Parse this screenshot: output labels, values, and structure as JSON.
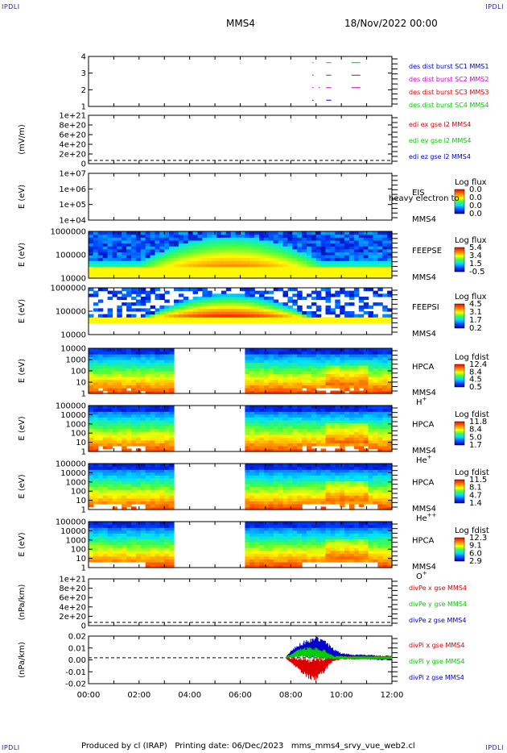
{
  "corner_label": "IPDLI",
  "header": {
    "mission": "MMS4",
    "datetime": "18/Nov/2022 00:00"
  },
  "footer": {
    "produced_by": "Produced by cl (IRAP)",
    "printing_date": "Printing date: 06/Dec/2023",
    "filename": "mms_mms4_srvy_vue_web2.cl"
  },
  "colors": {
    "red": "#dd0000",
    "green": "#00cc00",
    "blue": "#0000cc",
    "magenta": "#cc00cc",
    "fill_gap": "#ffffff"
  },
  "time_axis": {
    "range_hours": [
      0,
      12
    ],
    "tick_labels": [
      "00:00",
      "02:00",
      "04:00",
      "06:00",
      "08:00",
      "10:00",
      "12:00"
    ]
  },
  "chart_data": [
    {
      "type": "line",
      "panel": "burst",
      "ylabel": "",
      "yticks": [
        "4",
        "3",
        "2",
        "1"
      ],
      "ylim": [
        0.5,
        4.5
      ],
      "legend": [
        {
          "text": "des dist burst SC1 MMS1",
          "color": "#0000cc"
        },
        {
          "text": "des dist burst SC2 MMS2",
          "color": "#cc00cc"
        },
        {
          "text": "des dist burst SC3 MMS3",
          "color": "#dd0000"
        },
        {
          "text": "des dist burst SC4 MMS4",
          "color": "#00cc00"
        }
      ],
      "series": [
        {
          "name": "SC1",
          "level": 1,
          "x_hours": [
            [
              8.85,
              8.9
            ],
            [
              9.4,
              9.6
            ]
          ]
        },
        {
          "name": "SC2",
          "level": 2,
          "x_hours": [
            [
              8.85,
              8.9
            ],
            [
              9.1,
              9.15
            ],
            [
              9.4,
              9.6
            ],
            [
              10.4,
              10.75
            ]
          ]
        },
        {
          "name": "SC3",
          "level": 3,
          "x_hours": [
            [
              8.85,
              8.9
            ],
            [
              9.4,
              9.6
            ],
            [
              10.4,
              10.75
            ]
          ]
        },
        {
          "name": "SC4",
          "level": 4,
          "x_hours": [
            [
              8.85,
              8.9
            ],
            [
              9.4,
              9.6
            ],
            [
              10.4,
              10.75
            ]
          ]
        }
      ]
    },
    {
      "type": "line",
      "panel": "edi",
      "ylabel": "(mV/m)",
      "yticks": [
        "1e+21",
        "8e+20",
        "6e+20",
        "4e+20",
        "2e+20",
        "0"
      ],
      "ylim": [
        0,
        1e+21
      ],
      "legend": [
        {
          "text": "edi ex gse l2 MMS4",
          "color": "#dd0000"
        },
        {
          "text": "edi ey gse l2 MMS4",
          "color": "#00cc00"
        },
        {
          "text": "edi ez gse l2 MMS4",
          "color": "#0000cc"
        }
      ]
    },
    {
      "type": "heatmap",
      "panel": "eis",
      "ylabel": "E (eV)",
      "yticks": [
        "1e+07",
        "1e+06",
        "1e+05",
        "1e+04"
      ],
      "side_labels": [
        "EIS",
        "MMS4"
      ],
      "overlay_text": "heavy electron to",
      "colorbar": {
        "title": "Log flux",
        "ticks": [
          "0.0",
          "0.0",
          "0.0",
          "0.0"
        ]
      }
    },
    {
      "type": "heatmap",
      "panel": "feeps_e",
      "ylabel": "E (eV)",
      "yticks": [
        "1000000",
        "100000",
        "10000"
      ],
      "side_labels": [
        "FEEPSE",
        "MMS4"
      ],
      "colorbar": {
        "title": "Log flux",
        "ticks": [
          "5.4",
          "3.4",
          "1.5",
          "-0.5"
        ]
      }
    },
    {
      "type": "heatmap",
      "panel": "feeps_i",
      "ylabel": "E (eV)",
      "yticks": [
        "1000000",
        "100000",
        "10000"
      ],
      "side_labels": [
        "FEEPSI",
        "MMS4"
      ],
      "colorbar": {
        "title": "Log flux",
        "ticks": [
          "4.5",
          "3.1",
          "1.7",
          "0.2"
        ]
      }
    },
    {
      "type": "heatmap",
      "panel": "hpca_h",
      "ylabel": "E (eV)",
      "yticks": [
        "10000",
        "1000",
        "100",
        "10",
        "1"
      ],
      "side_labels": [
        "HPCA",
        "MMS4"
      ],
      "species": {
        "base": "H",
        "sup": "+"
      },
      "data_gap_hours": [
        3.45,
        6.15
      ],
      "colorbar": {
        "title": "Log fdist",
        "ticks": [
          "12.4",
          "8.4",
          "4.5",
          "0.5"
        ]
      }
    },
    {
      "type": "heatmap",
      "panel": "hpca_he1",
      "ylabel": "E (eV)",
      "yticks": [
        "100000",
        "10000",
        "1000",
        "100",
        "10",
        "1"
      ],
      "side_labels": [
        "HPCA",
        "MMS4"
      ],
      "species": {
        "base": "He",
        "sup": "+"
      },
      "data_gap_hours": [
        3.45,
        6.15
      ],
      "colorbar": {
        "title": "Log fdist",
        "ticks": [
          "11.8",
          "8.4",
          "5.0",
          "1.7"
        ]
      }
    },
    {
      "type": "heatmap",
      "panel": "hpca_he2",
      "ylabel": "E (eV)",
      "yticks": [
        "100000",
        "10000",
        "1000",
        "100",
        "10",
        "1"
      ],
      "side_labels": [
        "HPCA",
        "MMS4"
      ],
      "species": {
        "base": "He",
        "sup": "++"
      },
      "data_gap_hours": [
        3.45,
        6.15
      ],
      "colorbar": {
        "title": "Log fdist",
        "ticks": [
          "11.5",
          "8.1",
          "4.7",
          "1.4"
        ]
      }
    },
    {
      "type": "heatmap",
      "panel": "hpca_o",
      "ylabel": "E (eV)",
      "yticks": [
        "100000",
        "10000",
        "1000",
        "100",
        "10",
        "1"
      ],
      "side_labels": [
        "HPCA",
        "MMS4"
      ],
      "species": {
        "base": "O",
        "sup": "+"
      },
      "data_gap_hours": [
        3.45,
        6.15
      ],
      "colorbar": {
        "title": "Log fdist",
        "ticks": [
          "12.3",
          "9.1",
          "6.0",
          "2.9"
        ]
      }
    },
    {
      "type": "line",
      "panel": "divpe",
      "ylabel": "(nPa/km)",
      "yticks": [
        "1e+21",
        "8e+20",
        "6e+20",
        "4e+20",
        "2e+20",
        "0"
      ],
      "ylim": [
        0,
        1e+21
      ],
      "legend": [
        {
          "text": "divPe x gse MMS4",
          "color": "#dd0000"
        },
        {
          "text": "divPe y gse MMS4",
          "color": "#00cc00"
        },
        {
          "text": "divPe z gse MMS4",
          "color": "#0000cc"
        }
      ]
    },
    {
      "type": "line",
      "panel": "divpi",
      "ylabel": "(nPa/km)",
      "yticks": [
        "0.02",
        "0.01",
        "0.00",
        "-0.01",
        "-0.02"
      ],
      "ylim": [
        -0.03,
        0.025
      ],
      "legend": [
        {
          "text": "divPi x gse MMS4",
          "color": "#dd0000"
        },
        {
          "text": "divPi y gse MMS4",
          "color": "#00cc00"
        },
        {
          "text": "divPi z gse MMS4",
          "color": "#0000cc"
        }
      ],
      "series": [
        {
          "name": "x",
          "x_hours": [
            7.8,
            8.0,
            8.3,
            8.7,
            9.0,
            9.3,
            9.5,
            9.7,
            10.0,
            10.5,
            11.0,
            11.5,
            12.0
          ],
          "amp": [
            0.0,
            0.003,
            0.008,
            0.013,
            0.014,
            0.011,
            0.006,
            0.003,
            0.002,
            0.002,
            0.002,
            0.002,
            0.002
          ],
          "bias": [
            0,
            -0.003,
            -0.007,
            -0.012,
            -0.013,
            -0.009,
            -0.004,
            -0.001,
            0,
            0,
            0,
            0,
            0
          ]
        },
        {
          "name": "y",
          "x_hours": [
            7.8,
            8.0,
            8.3,
            8.7,
            9.0,
            9.3,
            9.5,
            9.7,
            10.0,
            10.5,
            11.0,
            11.5,
            12.0
          ],
          "amp": [
            0.0,
            0.002,
            0.005,
            0.007,
            0.007,
            0.006,
            0.004,
            0.002,
            0.002,
            0.001,
            0.001,
            0.001,
            0.001
          ],
          "bias": [
            0,
            0.002,
            0.005,
            0.006,
            0.005,
            0.004,
            0.002,
            0,
            0,
            0,
            0,
            0,
            0
          ]
        },
        {
          "name": "z",
          "x_hours": [
            7.8,
            8.0,
            8.3,
            8.7,
            9.0,
            9.3,
            9.5,
            9.7,
            10.0,
            10.5,
            11.0,
            11.5,
            12.0
          ],
          "amp": [
            0.0,
            0.004,
            0.008,
            0.012,
            0.013,
            0.012,
            0.009,
            0.006,
            0.004,
            0.003,
            0.003,
            0.003,
            0.003
          ],
          "bias": [
            0,
            0.004,
            0.008,
            0.011,
            0.012,
            0.01,
            0.008,
            0.005,
            0.002,
            0.001,
            0.001,
            0,
            0
          ]
        }
      ]
    }
  ]
}
